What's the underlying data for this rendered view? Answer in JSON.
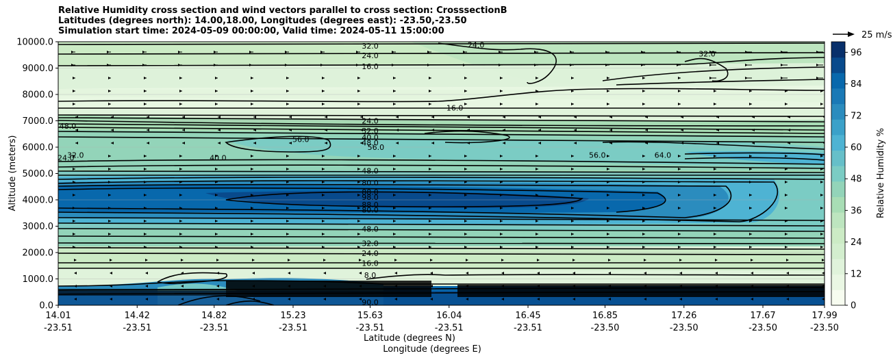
{
  "chart_data": {
    "type": "heatmap",
    "title_lines": [
      "Relative Humidity cross section and wind vectors parallel to cross section: CrosssectionB",
      "Latitudes (degrees north): 14.00,18.00, Longitudes (degrees east): -23.50,-23.50",
      "Simulation start time: 2024-05-09 00:00:00, Valid time: 2024-05-11 15:00:00"
    ],
    "ylabel": "Altitude (meters)",
    "xlabel_lat": "Latitude (degrees N)",
    "xlabel_lon": "Longitude (degrees E)",
    "ylim": [
      0,
      10000
    ],
    "y_ticks": [
      {
        "value": 0,
        "label": "0.0"
      },
      {
        "value": 1000,
        "label": "1000.0"
      },
      {
        "value": 2000,
        "label": "2000.0"
      },
      {
        "value": 3000,
        "label": "3000.0"
      },
      {
        "value": 4000,
        "label": "4000.0"
      },
      {
        "value": 5000,
        "label": "5000.0"
      },
      {
        "value": 6000,
        "label": "6000.0"
      },
      {
        "value": 7000,
        "label": "7000.0"
      },
      {
        "value": 8000,
        "label": "8000.0"
      },
      {
        "value": 9000,
        "label": "9000.0"
      },
      {
        "value": 10000,
        "label": "10000.0"
      }
    ],
    "x_range": [
      14.01,
      17.99
    ],
    "x_ticks": [
      {
        "lat": "14.01",
        "lon": "-23.51"
      },
      {
        "lat": "14.42",
        "lon": "-23.51"
      },
      {
        "lat": "14.82",
        "lon": "-23.51"
      },
      {
        "lat": "15.23",
        "lon": "-23.51"
      },
      {
        "lat": "15.63",
        "lon": "-23.51"
      },
      {
        "lat": "16.04",
        "lon": "-23.51"
      },
      {
        "lat": "16.45",
        "lon": "-23.51"
      },
      {
        "lat": "16.85",
        "lon": "-23.50"
      },
      {
        "lat": "17.26",
        "lon": "-23.50"
      },
      {
        "lat": "17.67",
        "lon": "-23.50"
      },
      {
        "lat": "17.99",
        "lon": "-23.50"
      }
    ],
    "colorbar": {
      "label": "Relative Humidity %",
      "min": 0,
      "max": 100,
      "ticks": [
        0,
        12,
        24,
        36,
        48,
        60,
        72,
        84,
        96
      ],
      "colors": [
        "#f7fcf0",
        "#eaf7e4",
        "#e0f3db",
        "#d3eece",
        "#ccebc5",
        "#bde5bf",
        "#a8ddb5",
        "#93d4b9",
        "#7bccc4",
        "#66bfc9",
        "#4eb3d3",
        "#3ba1c9",
        "#2b8cbe",
        "#1a79b6",
        "#0868ac",
        "#084a8c",
        "#08306b"
      ]
    },
    "vector_key": {
      "label": "25 m/s"
    },
    "contour_labels": [
      {
        "text": "32.0",
        "lat": 15.63,
        "alt": 9840
      },
      {
        "text": "24.0",
        "lat": 15.63,
        "alt": 9480
      },
      {
        "text": "16.0",
        "lat": 15.63,
        "alt": 9060
      },
      {
        "text": "24.0",
        "lat": 16.18,
        "alt": 9880
      },
      {
        "text": "32.0",
        "lat": 17.38,
        "alt": 9550
      },
      {
        "text": "16.0",
        "lat": 16.07,
        "alt": 7500
      },
      {
        "text": "24.0",
        "lat": 15.63,
        "alt": 7000
      },
      {
        "text": "32.0",
        "lat": 15.63,
        "alt": 6620
      },
      {
        "text": "40.0",
        "lat": 15.63,
        "alt": 6380
      },
      {
        "text": "48.0",
        "lat": 15.63,
        "alt": 6170
      },
      {
        "text": "48.0",
        "lat": 14.06,
        "alt": 6800
      },
      {
        "text": "24.0",
        "lat": 14.05,
        "alt": 5600
      },
      {
        "text": "32.0",
        "lat": 14.1,
        "alt": 5700
      },
      {
        "text": "56.0",
        "lat": 15.27,
        "alt": 6300
      },
      {
        "text": "40.0",
        "lat": 14.84,
        "alt": 5600
      },
      {
        "text": "56.0",
        "lat": 15.66,
        "alt": 6000
      },
      {
        "text": "56.0",
        "lat": 16.81,
        "alt": 5700
      },
      {
        "text": "64.0",
        "lat": 17.15,
        "alt": 5700
      },
      {
        "text": "48.0",
        "lat": 15.63,
        "alt": 5100
      },
      {
        "text": "80.0",
        "lat": 15.63,
        "alt": 4650
      },
      {
        "text": "88.0",
        "lat": 15.63,
        "alt": 4300
      },
      {
        "text": "98.0",
        "lat": 15.63,
        "alt": 4100
      },
      {
        "text": "88.0",
        "lat": 15.63,
        "alt": 3820
      },
      {
        "text": "80.0",
        "lat": 15.63,
        "alt": 3620
      },
      {
        "text": "48.0",
        "lat": 15.63,
        "alt": 2900
      },
      {
        "text": "32.0",
        "lat": 15.63,
        "alt": 2350
      },
      {
        "text": "24.0",
        "lat": 15.63,
        "alt": 1970
      },
      {
        "text": "16.0",
        "lat": 15.63,
        "alt": 1600
      },
      {
        "text": "8.0",
        "lat": 15.63,
        "alt": 1140
      },
      {
        "text": "90.0",
        "lat": 15.63,
        "alt": 120
      }
    ]
  }
}
